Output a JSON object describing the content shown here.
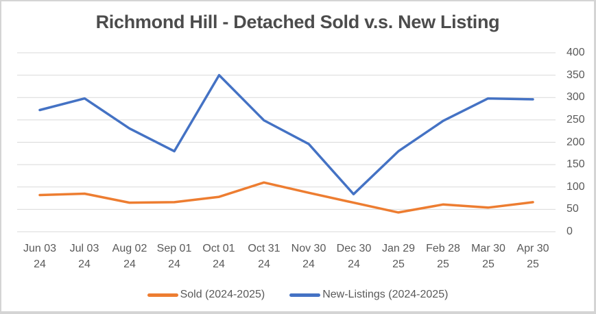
{
  "title": "Richmond Hill - Detached Sold v.s. New Listing",
  "colors": {
    "sold": "#ED7D31",
    "new_listings": "#4472C4",
    "gridline": "#D9D9D9",
    "axis_text": "#595959",
    "title_text": "#4C4C4C",
    "frame_border": "#D4D4D4"
  },
  "chart_data": {
    "type": "line",
    "title": "Richmond Hill - Detached Sold v.s. New Listing",
    "xlabel": "",
    "ylabel": "",
    "ylim": [
      0,
      400
    ],
    "grid": true,
    "legend_position": "bottom",
    "yaxis": {
      "position": "right",
      "min": 0,
      "max": 400,
      "step": 50,
      "ticks": [
        400,
        350,
        300,
        250,
        200,
        150,
        100,
        50,
        0
      ]
    },
    "categories": [
      {
        "label": "Jun 03",
        "year": "24"
      },
      {
        "label": "Jul 03",
        "year": "24"
      },
      {
        "label": "Aug 02",
        "year": "24"
      },
      {
        "label": "Sep 01",
        "year": "24"
      },
      {
        "label": "Oct 01",
        "year": "24"
      },
      {
        "label": "Oct 31",
        "year": "24"
      },
      {
        "label": "Nov 30",
        "year": "24"
      },
      {
        "label": "Dec 30",
        "year": "24"
      },
      {
        "label": "Jan 29",
        "year": "25"
      },
      {
        "label": "Feb 28",
        "year": "25"
      },
      {
        "label": "Mar 30",
        "year": "25"
      },
      {
        "label": "Apr 30",
        "year": "25"
      }
    ],
    "series": [
      {
        "name": "Sold (2024-2025)",
        "color": "#ED7D31",
        "values": [
          82,
          85,
          65,
          66,
          78,
          110,
          87,
          65,
          43,
          61,
          54,
          66
        ]
      },
      {
        "name": "New-Listings (2024-2025)",
        "color": "#4472C4",
        "values": [
          272,
          298,
          231,
          180,
          350,
          249,
          196,
          84,
          180,
          248,
          298,
          296
        ]
      }
    ]
  }
}
